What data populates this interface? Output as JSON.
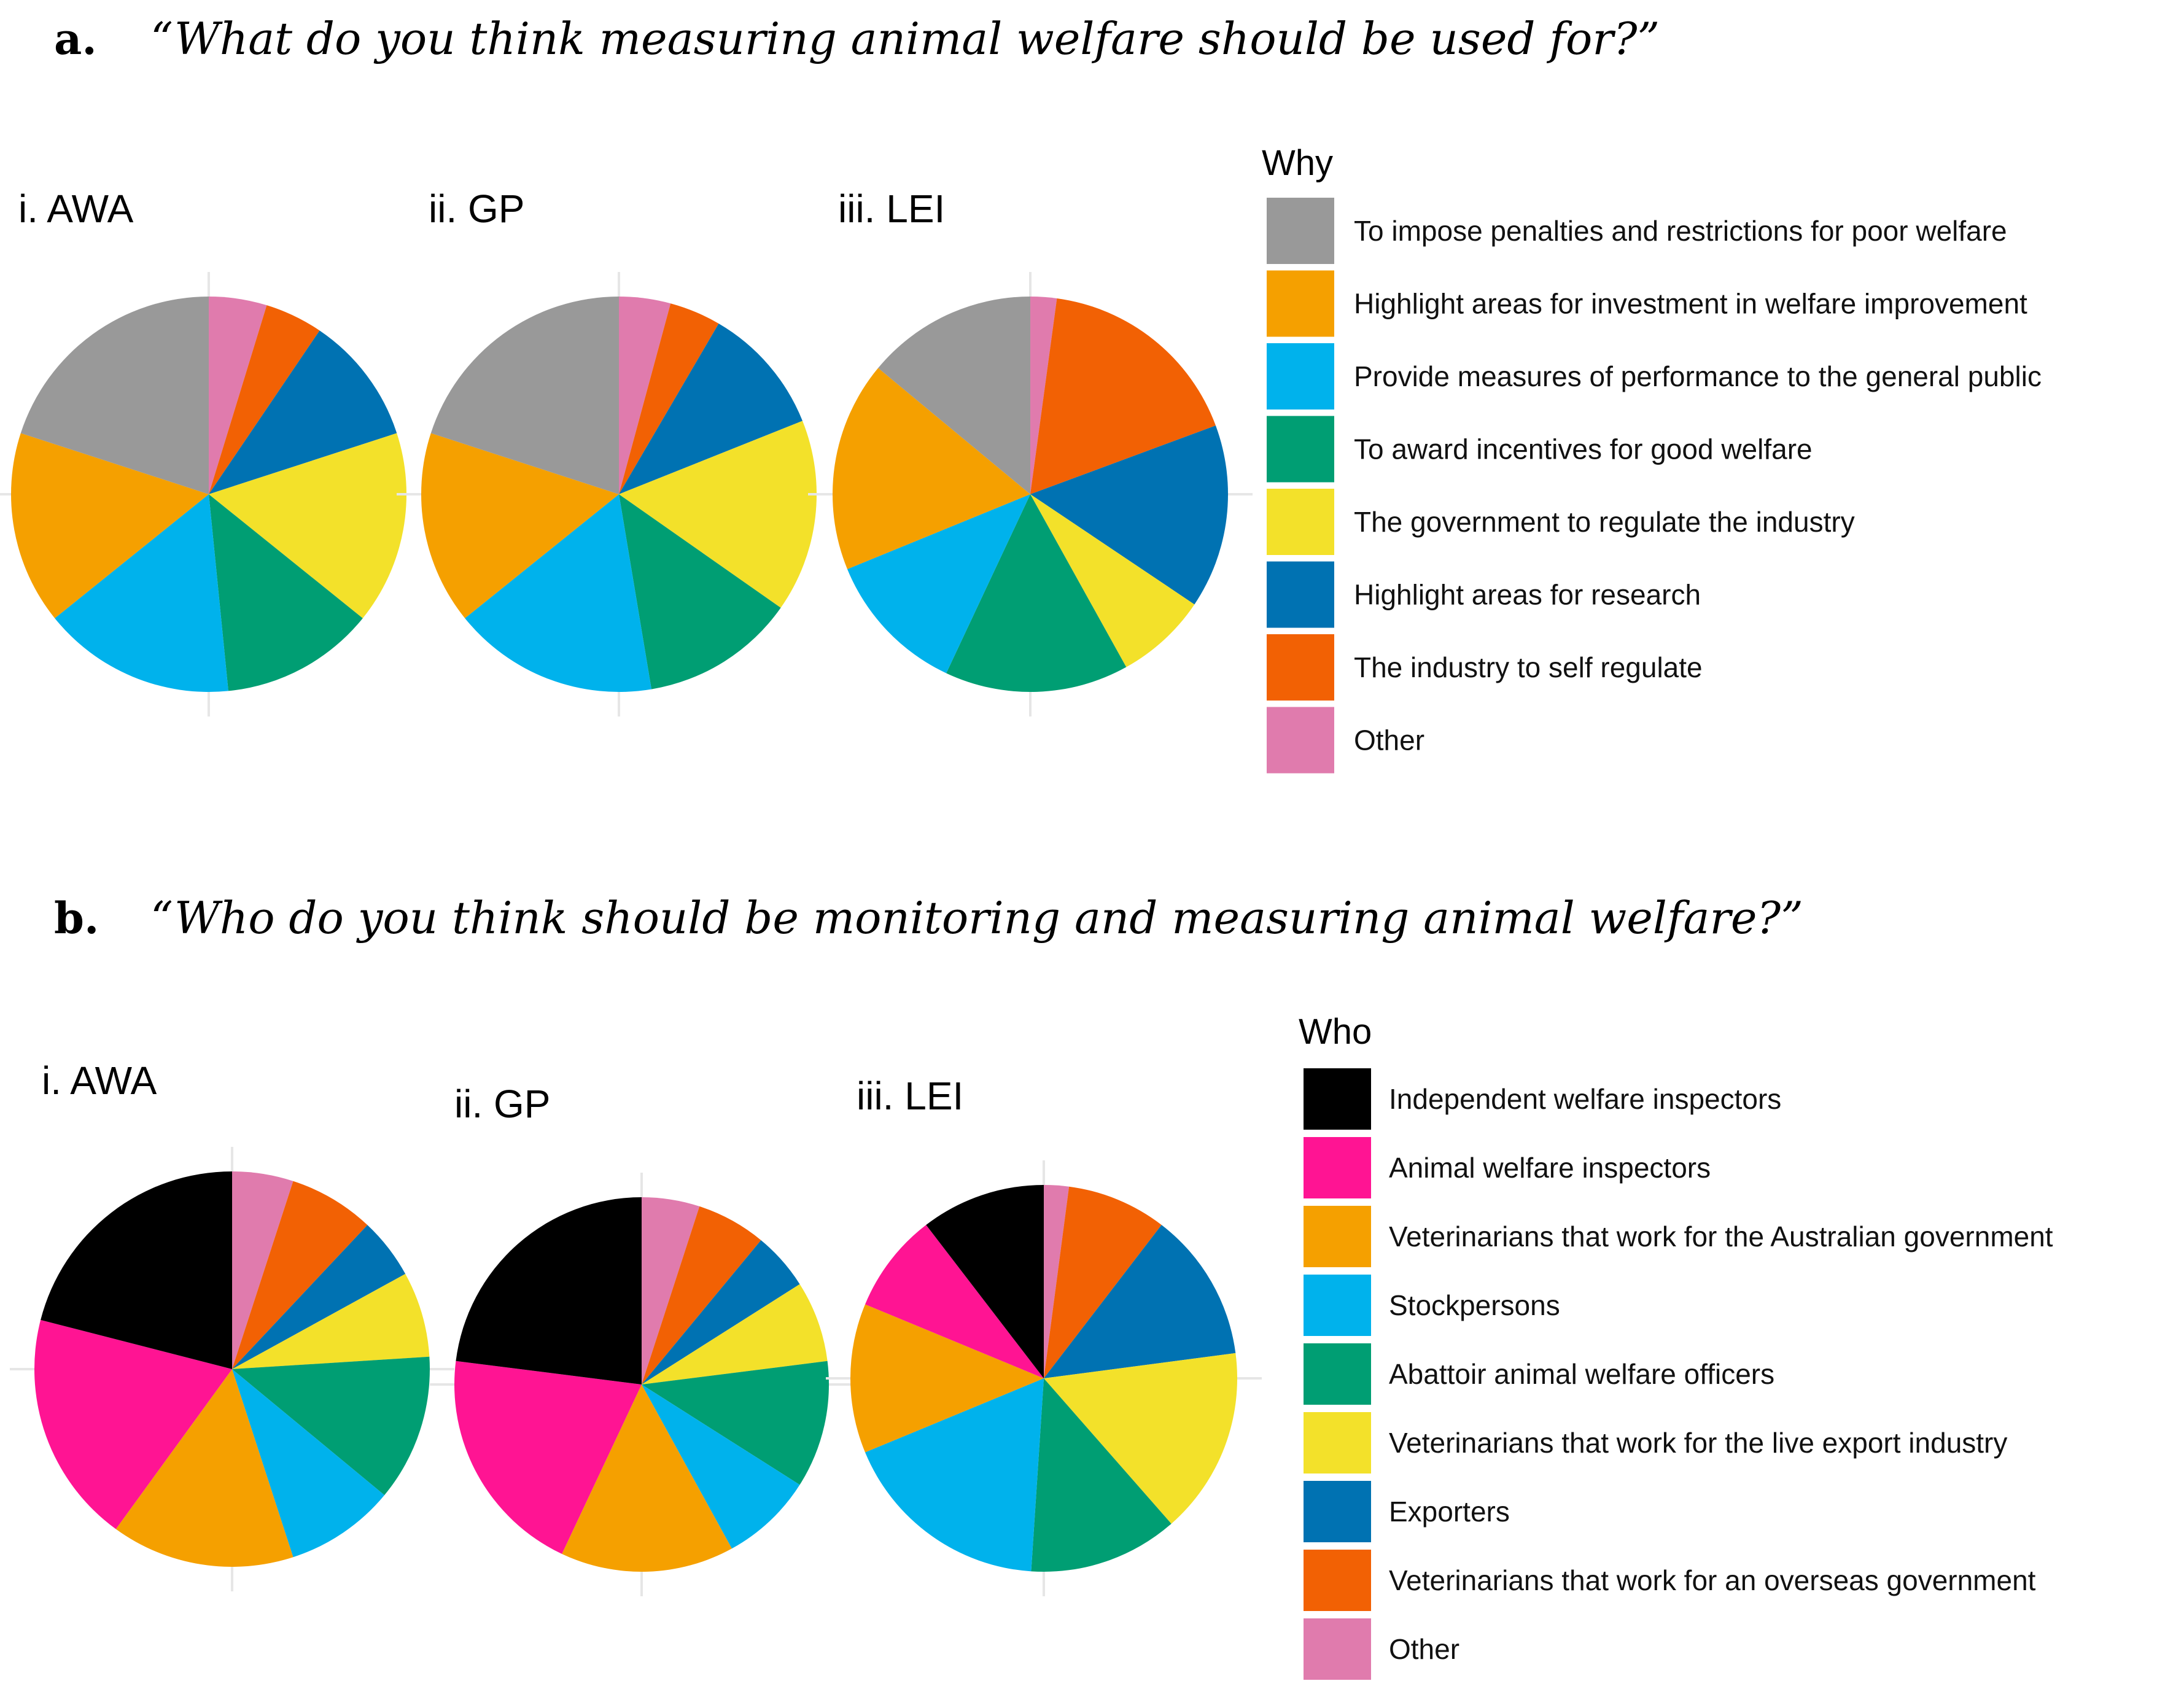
{
  "chart_data": [
    {
      "type": "pie",
      "panel_label": "a.",
      "question": "“What do you think measuring animal welfare should be used for?”",
      "legend_title": "Why",
      "categories": [
        "To impose penalties and restrictions for poor welfare",
        "Highlight areas for investment in welfare improvement",
        "Provide measures of performance to the general public",
        "To award incentives for good welfare",
        "The government to regulate the industry",
        "Highlight areas for research",
        "The industry to self regulate",
        "Other"
      ],
      "colors": [
        "#999999",
        "#F5A000",
        "#00B2EC",
        "#009E73",
        "#F3E12A",
        "#0072B2",
        "#F26104",
        "#E07BAD"
      ],
      "pie_order": [
        7,
        6,
        5,
        4,
        3,
        2,
        1,
        0
      ],
      "pies": [
        {
          "title": "i. AWA",
          "values": [
            4.5,
            4.5,
            10,
            15,
            12,
            15,
            15,
            19
          ]
        },
        {
          "title": "ii. GP",
          "values": [
            4,
            4,
            10,
            15,
            12,
            16,
            15,
            19
          ]
        },
        {
          "title": "iii. LEI",
          "values": [
            2,
            16,
            14,
            7,
            14,
            11,
            16,
            13
          ]
        }
      ]
    },
    {
      "type": "pie",
      "panel_label": "b.",
      "question": "“Who do you think should be monitoring and measuring animal welfare?”",
      "legend_title": "Who",
      "categories": [
        "Independent welfare inspectors",
        "Animal welfare inspectors",
        "Veterinarians that work for the Australian government",
        "Stockpersons",
        "Abattoir animal welfare officers",
        "Veterinarians that work for the live export industry",
        "Exporters",
        "Veterinarians that work for an overseas government",
        "Other"
      ],
      "colors": [
        "#000000",
        "#FF1493",
        "#F5A000",
        "#00B2EC",
        "#009E73",
        "#F3E12A",
        "#0072B2",
        "#F26104",
        "#E07BAD"
      ],
      "pie_order": [
        8,
        7,
        6,
        5,
        4,
        3,
        2,
        1,
        0
      ],
      "pies": [
        {
          "title": "i. AWA",
          "values": [
            5,
            7,
            5,
            7,
            12,
            9,
            15,
            19,
            21
          ]
        },
        {
          "title": "ii. GP",
          "values": [
            5,
            6,
            5,
            7,
            11,
            8,
            15,
            20,
            23
          ]
        },
        {
          "title": "iii. LEI",
          "values": [
            2,
            8,
            12,
            15,
            12,
            17,
            12,
            8,
            10
          ]
        }
      ]
    }
  ]
}
